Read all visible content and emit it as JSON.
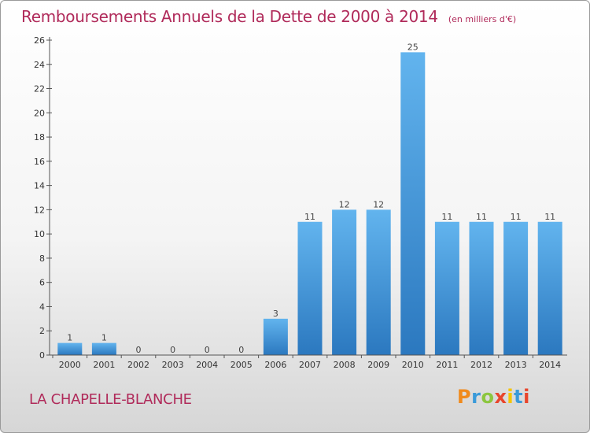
{
  "chart_data": {
    "type": "bar",
    "title": "Remboursements Annuels de la Dette de 2000 à 2014",
    "subtitle": "(en milliers d'€)",
    "xlabel": "",
    "ylabel": "",
    "categories": [
      "2000",
      "2001",
      "2002",
      "2003",
      "2004",
      "2005",
      "2006",
      "2007",
      "2008",
      "2009",
      "2010",
      "2011",
      "2012",
      "2013",
      "2014"
    ],
    "values": [
      1,
      1,
      0,
      0,
      0,
      0,
      3,
      11,
      12,
      12,
      25,
      11,
      11,
      11,
      11
    ],
    "data_labels": [
      "1",
      "1",
      "0",
      "0",
      "0",
      "0",
      "3",
      "11",
      "12",
      "12",
      "25",
      "11",
      "11",
      "11",
      "11"
    ],
    "ylim": [
      0,
      26
    ],
    "yticks": [
      0,
      2,
      4,
      6,
      8,
      10,
      12,
      14,
      16,
      18,
      20,
      22,
      24,
      26
    ],
    "grid": false,
    "bar_color": "#4a9fe0"
  },
  "footer": {
    "city": "LA CHAPELLE-BLANCHE",
    "logo": "Proxiti"
  },
  "colors": {
    "title": "#b02a5a",
    "bar_top": "#62b4ee",
    "bar_bottom": "#2b78bf"
  }
}
